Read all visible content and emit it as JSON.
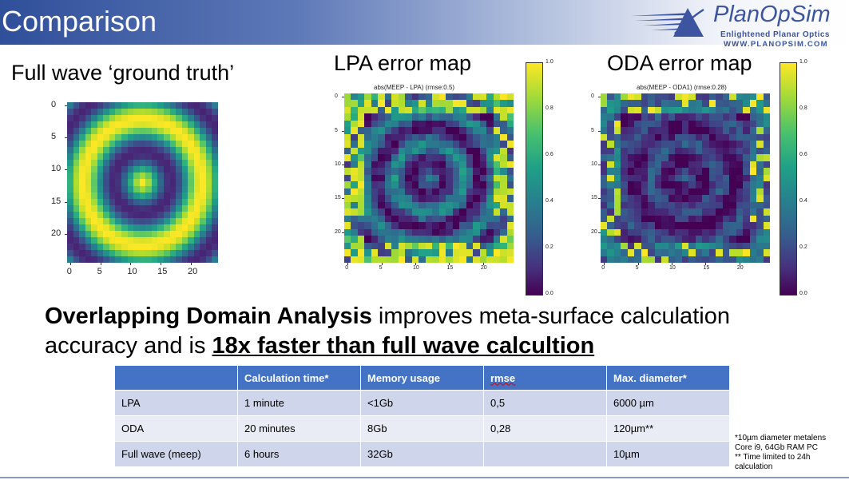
{
  "slide": {
    "title": "Comparison",
    "logo": {
      "name": "PlanOpSim",
      "tagline": "Enlightened Planar Optics",
      "url": "WWW.PLANOPSIM.COM"
    },
    "colors": {
      "header_dark": "#2f4f9a",
      "accent": "#3d55a0",
      "table_header": "#4472c4"
    }
  },
  "maps": [
    {
      "label": "Full wave ‘ground truth’",
      "subtitle": "",
      "xticks": [
        "0",
        "5",
        "10",
        "15",
        "20"
      ],
      "yticks": [
        "0",
        "5",
        "10",
        "15",
        "20"
      ],
      "colorbar": false
    },
    {
      "label": "LPA error map",
      "subtitle": "abs(MEEP - LPA) (rmse:0.5)",
      "xticks": [
        "0",
        "5",
        "10",
        "15",
        "20"
      ],
      "yticks": [
        "0",
        "5",
        "10",
        "15",
        "20"
      ],
      "colorbar": true,
      "colorbar_ticks": [
        "1.0",
        "0.8",
        "0.6",
        "0.4",
        "0.2",
        "0.0"
      ]
    },
    {
      "label": "ODA error map",
      "subtitle": "abs(MEEP - ODA1) (rmse:0.28)",
      "xticks": [
        "0",
        "5",
        "10",
        "15",
        "20"
      ],
      "yticks": [
        "0",
        "5",
        "10",
        "15",
        "20"
      ],
      "colorbar": true,
      "colorbar_ticks": [
        "1.0",
        "0.8",
        "0.6",
        "0.4",
        "0.2",
        "0.0"
      ]
    }
  ],
  "headline": {
    "bold1": "Overlapping Domain Analysis",
    "text1": " improves meta-surface calculation accuracy and is ",
    "bold2": "18x faster than full wave calcultion"
  },
  "table": {
    "headers": [
      "",
      "Calculation time*",
      "Memory usage",
      "rmse",
      "Max. diameter*"
    ],
    "rows": [
      [
        "LPA",
        "1 minute",
        "<1Gb",
        "0,5",
        "6000 µm"
      ],
      [
        "ODA",
        "20 minutes",
        "8Gb",
        "0,28",
        "120µm**"
      ],
      [
        "Full wave (meep)",
        "6 hours",
        "32Gb",
        "",
        "10µm"
      ]
    ]
  },
  "footnote": {
    "line1": "*10µm diameter metalens",
    "line2": "Core i9, 64Gb RAM PC",
    "line3": "** Time limited to 24h",
    "line4": "calculation"
  }
}
